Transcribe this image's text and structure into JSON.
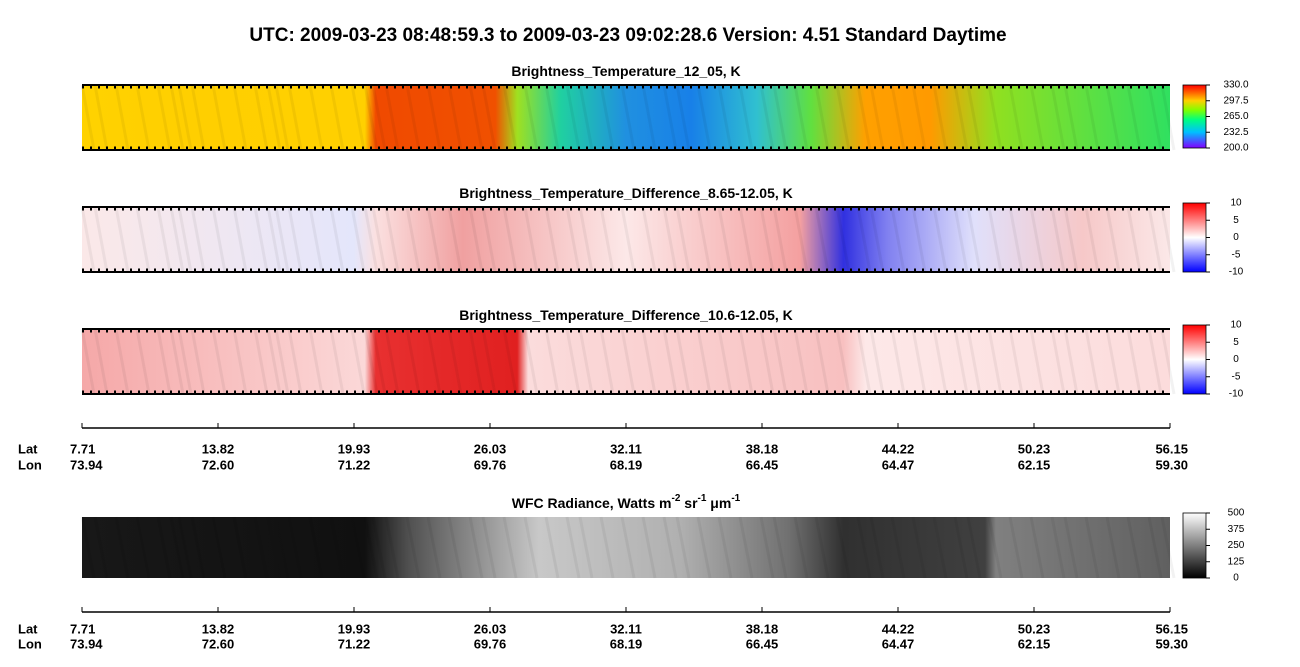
{
  "title": "UTC:  2009-03-23   08:48:59.3  to  2009-03-23   09:02:28.6    Version: 4.51  Standard Daytime",
  "panels": [
    {
      "title_parts": [
        "Brightness_Temperature_12_05, K"
      ],
      "colorbar": [
        "330.0",
        "297.5",
        "265.0",
        "232.5",
        "200.0"
      ]
    },
    {
      "title_parts": [
        "Brightness_Temperature_Difference_8.65-12.05, K"
      ],
      "colorbar": [
        "10",
        "5",
        "0",
        "-5",
        "-10"
      ]
    },
    {
      "title_parts": [
        "Brightness_Temperature_Difference_10.6-12.05, K"
      ],
      "colorbar": [
        "10",
        "5",
        "0",
        "-5",
        "-10"
      ]
    },
    {
      "title_parts": [
        "WFC Radiance, Watts m",
        "-2",
        " sr",
        "-1",
        " μm",
        "-1"
      ],
      "colorbar": [
        "500",
        "375",
        "250",
        "125",
        "0"
      ]
    }
  ],
  "axis": {
    "lat_name": "Lat",
    "lon_name": "Lon",
    "lat": [
      "7.71",
      "13.82",
      "19.93",
      "26.03",
      "32.11",
      "38.18",
      "44.22",
      "50.23",
      "56.15"
    ],
    "lon": [
      "73.94",
      "72.60",
      "71.22",
      "69.76",
      "68.19",
      "66.45",
      "64.47",
      "62.15",
      "59.30"
    ]
  }
}
